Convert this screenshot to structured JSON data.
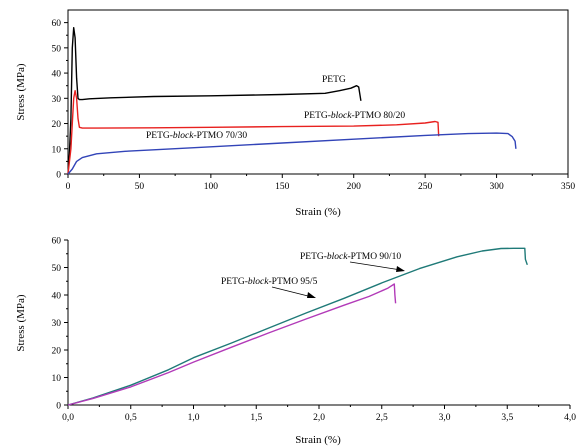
{
  "chart_data": [
    {
      "type": "line",
      "title": "",
      "xlabel": "Strain (%)",
      "ylabel": "Stress (MPa)",
      "xlim": [
        0,
        350
      ],
      "ylim": [
        0,
        65
      ],
      "xticks": [
        "0",
        "50",
        "100",
        "150",
        "200",
        "250",
        "300",
        "350"
      ],
      "yticks": [
        "0",
        "10",
        "20",
        "30",
        "40",
        "50",
        "60"
      ],
      "grid": false,
      "series": [
        {
          "name": "PETG",
          "color": "#000000",
          "x": [
            0,
            1,
            2,
            3,
            4,
            5,
            6,
            7,
            8,
            10,
            15,
            30,
            60,
            100,
            150,
            180,
            190,
            198,
            202,
            203.5,
            204.5,
            205
          ],
          "y": [
            0,
            8,
            22,
            50,
            58,
            54,
            38,
            30,
            29.5,
            29.5,
            29.8,
            30.2,
            30.7,
            31,
            31.5,
            32,
            33,
            34,
            35,
            34.5,
            31,
            29
          ]
        },
        {
          "name": "PETG-block-PTMO 80/20",
          "color": "#e8211f",
          "x": [
            0,
            2,
            3,
            4,
            5,
            6,
            7,
            8,
            10,
            20,
            60,
            100,
            150,
            200,
            230,
            250,
            257,
            259,
            259.5
          ],
          "y": [
            0,
            10,
            20,
            30,
            33,
            30,
            22,
            18.5,
            18.2,
            18.2,
            18.3,
            18.5,
            18.8,
            19,
            19.5,
            20.2,
            20.8,
            20.5,
            15
          ]
        },
        {
          "name": "PETG-block-PTMO 70/30",
          "color": "#3244b8",
          "x": [
            0,
            3,
            6,
            10,
            20,
            40,
            60,
            100,
            150,
            200,
            250,
            280,
            300,
            308,
            311,
            313,
            313.5
          ],
          "y": [
            0,
            2,
            5,
            6.5,
            8,
            9,
            9.6,
            10.8,
            12.3,
            13.8,
            15.3,
            16,
            16.2,
            16,
            14.8,
            13,
            10
          ]
        }
      ],
      "annotations": [
        {
          "text": "PETG",
          "target": "PETG"
        },
        {
          "text": "PETG-block-PTMO 80/20",
          "target": "PETG-block-PTMO 80/20"
        },
        {
          "text": "PETG-block-PTMO 70/30",
          "target": "PETG-block-PTMO 70/30"
        }
      ]
    },
    {
      "type": "line",
      "title": "",
      "xlabel": "Strain (%)",
      "ylabel": "Stress (MPa)",
      "xlim": [
        0,
        4
      ],
      "ylim": [
        0,
        60
      ],
      "xticks": [
        "0,0",
        "0,5",
        "1,0",
        "1,5",
        "2,0",
        "2,5",
        "3,0",
        "3,5",
        "4,0"
      ],
      "yticks": [
        "0",
        "10",
        "20",
        "30",
        "40",
        "50",
        "60"
      ],
      "grid": false,
      "series": [
        {
          "name": "PETG-block-PTMO 90/10",
          "color": "#1f7a78",
          "x": [
            0,
            0.2,
            0.5,
            0.8,
            1.0,
            1.3,
            1.6,
            1.9,
            2.2,
            2.5,
            2.8,
            3.1,
            3.3,
            3.45,
            3.55,
            3.64,
            3.645,
            3.66
          ],
          "y": [
            0,
            2.6,
            7.2,
            12.8,
            17.2,
            22.5,
            28,
            33.5,
            38.8,
            44.4,
            49.6,
            53.9,
            56,
            56.9,
            57,
            57,
            53,
            51
          ]
        },
        {
          "name": "PETG-block-PTMO 95/5",
          "color": "#b23ab8",
          "x": [
            0,
            0.2,
            0.5,
            0.8,
            1.0,
            1.3,
            1.6,
            1.9,
            2.2,
            2.4,
            2.55,
            2.6,
            2.605,
            2.61
          ],
          "y": [
            0,
            2.4,
            6.6,
            11.8,
            15.6,
            21,
            26.2,
            31.3,
            36.3,
            39.5,
            42.5,
            44,
            40,
            37
          ]
        }
      ],
      "annotations": [
        {
          "text": "PETG-block-PTMO 90/10",
          "target": "PETG-block-PTMO 90/10"
        },
        {
          "text": "PETG-block-PTMO 95/5",
          "target": "PETG-block-PTMO 95/5"
        }
      ]
    }
  ]
}
